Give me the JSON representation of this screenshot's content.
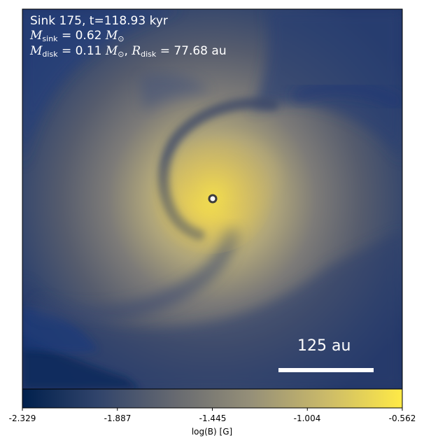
{
  "figure": {
    "title_line1": "Sink 175, t=118.93 kyr",
    "m_sink_value": "= 0.62",
    "m_disk_value": "= 0.11",
    "r_disk_value": "= 77.68",
    "r_disk_unit": "au",
    "scale_bar_label": "125 au"
  },
  "colorbar": {
    "label": "log(B) [G]",
    "ticks": [
      "-2.329",
      "-1.887",
      "-1.445",
      "-1.004",
      "-0.562"
    ],
    "range": [
      -2.329,
      -0.562
    ],
    "colormap": "cividis",
    "colors": [
      "#00204d",
      "#31446b",
      "#666970",
      "#958f78",
      "#cbba69",
      "#ffea46"
    ]
  }
}
